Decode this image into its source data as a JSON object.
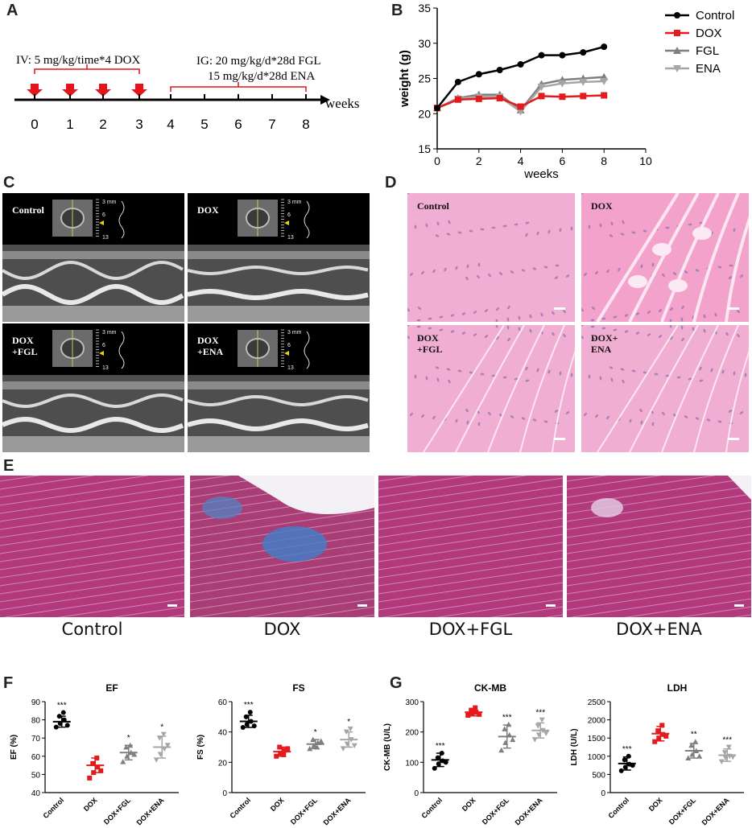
{
  "panels": {
    "A": "A",
    "B": "B",
    "C": "C",
    "D": "D",
    "E": "E",
    "F": "F",
    "G": "G"
  },
  "panelA": {
    "iv_text": "IV: 5 mg/kg/time*4 DOX",
    "ig_text1": "IG: 20 mg/kg/d*28d FGL",
    "ig_text2": "15 mg/kg/d*28d ENA",
    "axis_label": "weeks",
    "ticks": [
      "0",
      "1",
      "2",
      "3",
      "4",
      "5",
      "6",
      "7",
      "8"
    ],
    "arrow_color": "#e4141b"
  },
  "panelC": {
    "labels": [
      "Control",
      "DOX",
      "DOX\n+FGL",
      "DOX\n+ENA"
    ],
    "scale": {
      "top": "3 mm",
      "mid": "6",
      "bot": "13"
    }
  },
  "panelD": {
    "labels": [
      "Control",
      "DOX",
      "DOX\n+FGL",
      "DOX+\nENA"
    ]
  },
  "panelE": {
    "labels": [
      "Control",
      "DOX",
      "DOX+FGL",
      "DOX+ENA"
    ]
  },
  "colors": {
    "control": "#000000",
    "dox": "#e41a1c",
    "fgl": "#7f7f7f",
    "ena": "#a6a6a6",
    "he": "#f0a8cc",
    "masson": "#b53a7a"
  },
  "chart_data": [
    {
      "panel": "B",
      "type": "line",
      "xlabel": "weeks",
      "ylabel": "weight (g)",
      "xlim": [
        0,
        10
      ],
      "ylim": [
        15,
        35
      ],
      "xticks": [
        "0",
        "2",
        "4",
        "6",
        "8",
        "10"
      ],
      "yticks": [
        "15",
        "20",
        "25",
        "30",
        "35"
      ],
      "x": [
        0,
        1,
        2,
        3,
        4,
        5,
        6,
        7,
        8
      ],
      "legend_position": "top-right",
      "series": [
        {
          "name": "Control",
          "values": [
            20.8,
            24.5,
            25.6,
            26.2,
            27.0,
            28.3,
            28.3,
            28.7,
            29.5
          ]
        },
        {
          "name": "DOX",
          "values": [
            20.8,
            22.0,
            22.1,
            22.2,
            21.0,
            22.5,
            22.4,
            22.5,
            22.6
          ]
        },
        {
          "name": "FGL",
          "values": [
            20.8,
            22.2,
            22.7,
            22.7,
            20.5,
            24.2,
            24.8,
            25.0,
            25.2
          ]
        },
        {
          "name": "ENA",
          "values": [
            20.8,
            22.1,
            22.4,
            22.4,
            20.3,
            23.8,
            24.3,
            24.5,
            24.6
          ]
        }
      ]
    },
    {
      "panel": "F",
      "type": "scatter",
      "title": "EF",
      "ylabel": "EF (%)",
      "ylim": [
        40,
        90
      ],
      "yticks": [
        "40",
        "50",
        "60",
        "70",
        "80",
        "90"
      ],
      "categories": [
        "Control",
        "DOX",
        "DOX+FGL",
        "DOX+ENA"
      ],
      "significance": [
        "***",
        "",
        "*",
        "*"
      ],
      "series": [
        {
          "name": "Control",
          "mean": 79,
          "sd": 3,
          "points": [
            76,
            78,
            80,
            82,
            84,
            77
          ]
        },
        {
          "name": "DOX",
          "mean": 55,
          "sd": 4,
          "points": [
            48,
            51,
            54,
            56,
            59,
            52
          ]
        },
        {
          "name": "DOX+FGL",
          "mean": 62,
          "sd": 4,
          "points": [
            57,
            60,
            62,
            65,
            66,
            61
          ]
        },
        {
          "name": "DOX+ENA",
          "mean": 65,
          "sd": 6,
          "points": [
            58,
            61,
            64,
            70,
            72,
            66
          ]
        }
      ]
    },
    {
      "panel": "F",
      "type": "scatter",
      "title": "FS",
      "ylabel": "FS (%)",
      "ylim": [
        0,
        60
      ],
      "yticks": [
        "0",
        "20",
        "40",
        "60"
      ],
      "categories": [
        "Control",
        "DOX",
        "DOX+FGL",
        "DOX+ENA"
      ],
      "significance": [
        "***",
        "",
        "*",
        "*"
      ],
      "series": [
        {
          "name": "Control",
          "mean": 47,
          "sd": 4,
          "points": [
            43,
            45,
            47,
            50,
            53,
            44
          ]
        },
        {
          "name": "DOX",
          "mean": 27,
          "sd": 3,
          "points": [
            24,
            26,
            28,
            30,
            25,
            29
          ]
        },
        {
          "name": "DOX+FGL",
          "mean": 32,
          "sd": 3,
          "points": [
            29,
            31,
            33,
            35,
            30,
            34
          ]
        },
        {
          "name": "DOX+ENA",
          "mean": 35,
          "sd": 5,
          "points": [
            29,
            32,
            35,
            40,
            42,
            31
          ]
        }
      ]
    },
    {
      "panel": "G",
      "type": "scatter",
      "title": "CK-MB",
      "ylabel": "CK-MB (U/L)",
      "ylim": [
        0,
        300
      ],
      "yticks": [
        "0",
        "100",
        "200",
        "300"
      ],
      "categories": [
        "Control",
        "DOX",
        "DOX+FGL",
        "DOX+ENA"
      ],
      "significance": [
        "***",
        "",
        "***",
        "***"
      ],
      "series": [
        {
          "name": "Control",
          "mean": 108,
          "sd": 22,
          "points": [
            80,
            95,
            105,
            115,
            130,
            100
          ]
        },
        {
          "name": "DOX",
          "mean": 265,
          "sd": 12,
          "points": [
            255,
            260,
            265,
            272,
            280,
            258
          ]
        },
        {
          "name": "DOX+FGL",
          "mean": 185,
          "sd": 38,
          "points": [
            140,
            165,
            190,
            210,
            225,
            175
          ]
        },
        {
          "name": "DOX+ENA",
          "mean": 205,
          "sd": 25,
          "points": [
            175,
            190,
            205,
            220,
            240,
            195
          ]
        }
      ]
    },
    {
      "panel": "G",
      "type": "scatter",
      "title": "LDH",
      "ylabel": "LDH (U/L)",
      "ylim": [
        0,
        2500
      ],
      "yticks": [
        "0",
        "500",
        "1000",
        "1500",
        "2000",
        "2500"
      ],
      "categories": [
        "Control",
        "DOX",
        "DOX+FGL",
        "DOX+ENA"
      ],
      "significance": [
        "***",
        "",
        "**",
        "***"
      ],
      "series": [
        {
          "name": "Control",
          "mean": 800,
          "sd": 180,
          "points": [
            600,
            700,
            780,
            900,
            1000,
            750
          ]
        },
        {
          "name": "DOX",
          "mean": 1620,
          "sd": 200,
          "points": [
            1400,
            1500,
            1600,
            1700,
            1850,
            1550
          ]
        },
        {
          "name": "DOX+FGL",
          "mean": 1150,
          "sd": 200,
          "points": [
            950,
            1050,
            1150,
            1300,
            1400,
            1000
          ]
        },
        {
          "name": "DOX+ENA",
          "mean": 1030,
          "sd": 170,
          "points": [
            850,
            950,
            1000,
            1100,
            1250,
            980
          ]
        }
      ]
    }
  ]
}
